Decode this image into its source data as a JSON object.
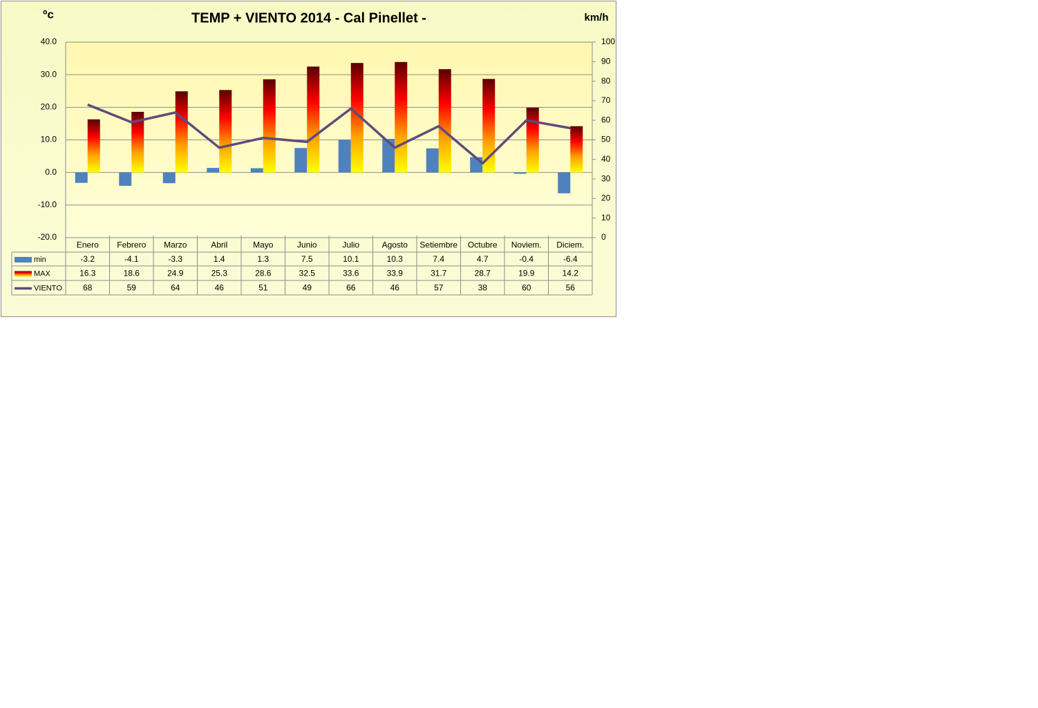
{
  "chart_data": {
    "type": "bar",
    "title": "TEMP + VIENTO 2014 - Cal Pinellet -",
    "y_label": "ºc",
    "y2_label": "km/h",
    "categories": [
      "Enero",
      "Febrero",
      "Marzo",
      "Abril",
      "Mayo",
      "Junio",
      "Julio",
      "Agosto",
      "Setiembre",
      "Octubre",
      "Noviem.",
      "Diciem."
    ],
    "series": [
      {
        "name": "min",
        "type": "bar",
        "color": "#4f81bd",
        "values": [
          -3.2,
          -4.1,
          -3.3,
          1.4,
          1.3,
          7.5,
          10.1,
          10.3,
          7.4,
          4.7,
          -0.4,
          -6.4
        ]
      },
      {
        "name": "MAX",
        "type": "bar",
        "color": "#ff0000",
        "gradient": [
          "#ffff00",
          "#ffa000",
          "#ff0000",
          "#5a0000"
        ],
        "values": [
          16.3,
          18.6,
          24.9,
          25.3,
          28.6,
          32.5,
          33.6,
          33.9,
          31.7,
          28.7,
          19.9,
          14.2
        ]
      },
      {
        "name": "VIENTO",
        "type": "line",
        "axis": "y2",
        "color": "#5f4b7b",
        "values": [
          68,
          59,
          64,
          46,
          51,
          49,
          66,
          46,
          57,
          38,
          60,
          56
        ]
      }
    ],
    "ylim": [
      -20,
      40
    ],
    "yticks": [
      {
        "value": -20,
        "label": "-20.0"
      },
      {
        "value": -10,
        "label": "-10.0"
      },
      {
        "value": 0,
        "label": "0.0"
      },
      {
        "value": 10,
        "label": "10.0"
      },
      {
        "value": 20,
        "label": "20.0"
      },
      {
        "value": 30,
        "label": "30.0"
      },
      {
        "value": 40,
        "label": "40.0"
      }
    ],
    "y2lim": [
      0,
      100
    ],
    "y2ticks": [
      0,
      10,
      20,
      30,
      40,
      50,
      60,
      70,
      80,
      90,
      100
    ],
    "grid": true,
    "data_table": true
  }
}
